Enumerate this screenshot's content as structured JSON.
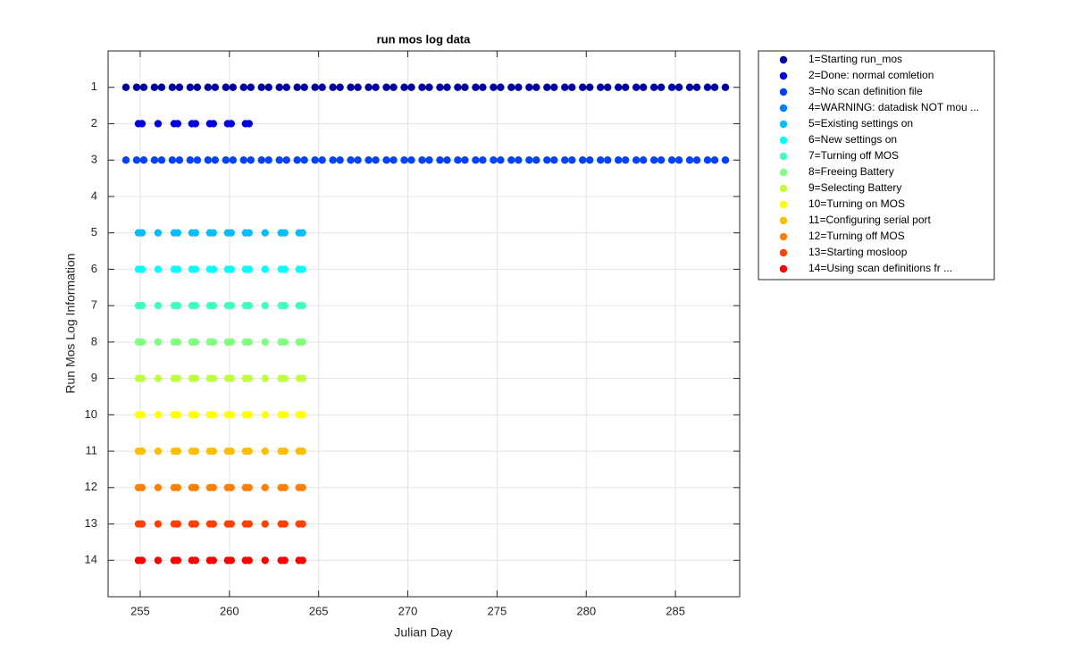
{
  "chart_data": {
    "type": "scatter",
    "title": "run mos log data",
    "xlabel": "Julian Day",
    "ylabel": "Run Mos Log Information",
    "xlim": [
      253.2,
      288.6
    ],
    "xticks": [
      255,
      260,
      265,
      270,
      275,
      280,
      285
    ],
    "ylim": [
      0,
      15
    ],
    "yticks": [
      1,
      2,
      3,
      4,
      5,
      6,
      7,
      8,
      9,
      10,
      11,
      12,
      13,
      14
    ],
    "ydir": "reverse",
    "grid": true,
    "legend": "outside-right",
    "series": [
      {
        "name": "1=Starting run_mos",
        "color": "#0000a0",
        "x": [
          254.2,
          254.8,
          255.2,
          255.8,
          256.2,
          256.8,
          257.2,
          257.8,
          258.2,
          258.8,
          259.2,
          259.8,
          260.2,
          260.8,
          261.2,
          261.8,
          262.2,
          262.8,
          263.2,
          263.8,
          264.2,
          264.8,
          265.2,
          265.8,
          266.2,
          266.8,
          267.2,
          267.8,
          268.2,
          268.8,
          269.2,
          269.8,
          270.2,
          270.8,
          271.2,
          271.8,
          272.2,
          272.8,
          273.2,
          273.8,
          274.2,
          274.8,
          275.2,
          275.8,
          276.2,
          276.8,
          277.2,
          277.8,
          278.2,
          278.8,
          279.2,
          279.8,
          280.2,
          280.8,
          281.2,
          281.8,
          282.2,
          282.8,
          283.2,
          283.8,
          284.2,
          284.8,
          285.2,
          285.8,
          286.2,
          286.8,
          287.2,
          287.8
        ],
        "values": [
          1,
          1,
          1,
          1,
          1,
          1,
          1,
          1,
          1,
          1,
          1,
          1,
          1,
          1,
          1,
          1,
          1,
          1,
          1,
          1,
          1,
          1,
          1,
          1,
          1,
          1,
          1,
          1,
          1,
          1,
          1,
          1,
          1,
          1,
          1,
          1,
          1,
          1,
          1,
          1,
          1,
          1,
          1,
          1,
          1,
          1,
          1,
          1,
          1,
          1,
          1,
          1,
          1,
          1,
          1,
          1,
          1,
          1,
          1,
          1,
          1,
          1,
          1,
          1,
          1,
          1,
          1,
          1
        ]
      },
      {
        "name": "2=Done: normal comletion",
        "color": "#0000e0",
        "x": [
          254.9,
          255.1,
          256,
          256.9,
          257.1,
          257.9,
          258.1,
          258.9,
          259.1,
          259.9,
          260.1,
          260.9,
          261.1
        ],
        "values": [
          2,
          2,
          2,
          2,
          2,
          2,
          2,
          2,
          2,
          2,
          2,
          2,
          2
        ]
      },
      {
        "name": "3=No scan definition file",
        "color": "#0040ff",
        "x": [
          254.2,
          254.8,
          255.2,
          255.8,
          256.2,
          256.8,
          257.2,
          257.8,
          258.2,
          258.8,
          259.2,
          259.8,
          260.2,
          260.8,
          261.2,
          261.8,
          262.2,
          262.8,
          263.2,
          263.8,
          264.2,
          264.8,
          265.2,
          265.8,
          266.2,
          266.8,
          267.2,
          267.8,
          268.2,
          268.8,
          269.2,
          269.8,
          270.2,
          270.8,
          271.2,
          271.8,
          272.2,
          272.8,
          273.2,
          273.8,
          274.2,
          274.8,
          275.2,
          275.8,
          276.2,
          276.8,
          277.2,
          277.8,
          278.2,
          278.8,
          279.2,
          279.8,
          280.2,
          280.8,
          281.2,
          281.8,
          282.2,
          282.8,
          283.2,
          283.8,
          284.2,
          284.8,
          285.2,
          285.8,
          286.2,
          286.8,
          287.2,
          287.8
        ],
        "values": [
          3,
          3,
          3,
          3,
          3,
          3,
          3,
          3,
          3,
          3,
          3,
          3,
          3,
          3,
          3,
          3,
          3,
          3,
          3,
          3,
          3,
          3,
          3,
          3,
          3,
          3,
          3,
          3,
          3,
          3,
          3,
          3,
          3,
          3,
          3,
          3,
          3,
          3,
          3,
          3,
          3,
          3,
          3,
          3,
          3,
          3,
          3,
          3,
          3,
          3,
          3,
          3,
          3,
          3,
          3,
          3,
          3,
          3,
          3,
          3,
          3,
          3,
          3,
          3,
          3,
          3,
          3,
          3
        ]
      },
      {
        "name": "4=WARNING: datadisk NOT mou ...",
        "color": "#0080ff",
        "x": [],
        "values": []
      },
      {
        "name": "5=Existing settings on",
        "color": "#00bfff",
        "x": [
          254.9,
          255.1,
          256,
          256.9,
          257.1,
          257.9,
          258.1,
          258.9,
          259.1,
          259.9,
          260.1,
          260.9,
          261.1,
          262,
          262.9,
          263.1,
          263.9,
          264.1
        ],
        "values": [
          5,
          5,
          5,
          5,
          5,
          5,
          5,
          5,
          5,
          5,
          5,
          5,
          5,
          5,
          5,
          5,
          5,
          5
        ]
      },
      {
        "name": "6=New settings on",
        "color": "#00ffff",
        "x": [
          254.9,
          255.1,
          256,
          256.9,
          257.1,
          257.9,
          258.1,
          258.9,
          259.1,
          259.9,
          260.1,
          260.9,
          261.1,
          262,
          262.9,
          263.1,
          263.9,
          264.1
        ],
        "values": [
          6,
          6,
          6,
          6,
          6,
          6,
          6,
          6,
          6,
          6,
          6,
          6,
          6,
          6,
          6,
          6,
          6,
          6
        ]
      },
      {
        "name": "7=Turning off MOS",
        "color": "#40ffbf",
        "x": [
          254.9,
          255.1,
          256,
          256.9,
          257.1,
          257.9,
          258.1,
          258.9,
          259.1,
          259.9,
          260.1,
          260.9,
          261.1,
          262,
          262.9,
          263.1,
          263.9,
          264.1
        ],
        "values": [
          7,
          7,
          7,
          7,
          7,
          7,
          7,
          7,
          7,
          7,
          7,
          7,
          7,
          7,
          7,
          7,
          7,
          7
        ]
      },
      {
        "name": "8=Freeing Battery",
        "color": "#80ff80",
        "x": [
          254.9,
          255.1,
          256,
          256.9,
          257.1,
          257.9,
          258.1,
          258.9,
          259.1,
          259.9,
          260.1,
          260.9,
          261.1,
          262,
          262.9,
          263.1,
          263.9,
          264.1
        ],
        "values": [
          8,
          8,
          8,
          8,
          8,
          8,
          8,
          8,
          8,
          8,
          8,
          8,
          8,
          8,
          8,
          8,
          8,
          8
        ]
      },
      {
        "name": "9=Selecting Battery",
        "color": "#bfff40",
        "x": [
          254.9,
          255.1,
          256,
          256.9,
          257.1,
          257.9,
          258.1,
          258.9,
          259.1,
          259.9,
          260.1,
          260.9,
          261.1,
          262,
          262.9,
          263.1,
          263.9,
          264.1
        ],
        "values": [
          9,
          9,
          9,
          9,
          9,
          9,
          9,
          9,
          9,
          9,
          9,
          9,
          9,
          9,
          9,
          9,
          9,
          9
        ]
      },
      {
        "name": "10=Turning on MOS",
        "color": "#ffff00",
        "x": [
          254.9,
          255.1,
          256,
          256.9,
          257.1,
          257.9,
          258.1,
          258.9,
          259.1,
          259.9,
          260.1,
          260.9,
          261.1,
          262,
          262.9,
          263.1,
          263.9,
          264.1
        ],
        "values": [
          10,
          10,
          10,
          10,
          10,
          10,
          10,
          10,
          10,
          10,
          10,
          10,
          10,
          10,
          10,
          10,
          10,
          10
        ]
      },
      {
        "name": "11=Configuring serial port",
        "color": "#ffbf00",
        "x": [
          254.9,
          255.1,
          256,
          256.9,
          257.1,
          257.9,
          258.1,
          258.9,
          259.1,
          259.9,
          260.1,
          260.9,
          261.1,
          262,
          262.9,
          263.1,
          263.9,
          264.1
        ],
        "values": [
          11,
          11,
          11,
          11,
          11,
          11,
          11,
          11,
          11,
          11,
          11,
          11,
          11,
          11,
          11,
          11,
          11,
          11
        ]
      },
      {
        "name": "12=Turning off MOS",
        "color": "#ff8000",
        "x": [
          254.9,
          255.1,
          256,
          256.9,
          257.1,
          257.9,
          258.1,
          258.9,
          259.1,
          259.9,
          260.1,
          260.9,
          261.1,
          262,
          262.9,
          263.1,
          263.9,
          264.1
        ],
        "values": [
          12,
          12,
          12,
          12,
          12,
          12,
          12,
          12,
          12,
          12,
          12,
          12,
          12,
          12,
          12,
          12,
          12,
          12
        ]
      },
      {
        "name": "13=Starting mosloop",
        "color": "#ff4000",
        "x": [
          254.9,
          255.1,
          256,
          256.9,
          257.1,
          257.9,
          258.1,
          258.9,
          259.1,
          259.9,
          260.1,
          260.9,
          261.1,
          262,
          262.9,
          263.1,
          263.9,
          264.1
        ],
        "values": [
          13,
          13,
          13,
          13,
          13,
          13,
          13,
          13,
          13,
          13,
          13,
          13,
          13,
          13,
          13,
          13,
          13,
          13
        ]
      },
      {
        "name": "14=Using scan definitions fr ...",
        "color": "#ff0000",
        "x": [
          254.9,
          255.1,
          256,
          256.9,
          257.1,
          257.9,
          258.1,
          258.9,
          259.1,
          259.9,
          260.1,
          260.9,
          261.1,
          262,
          262.9,
          263.1,
          263.9,
          264.1
        ],
        "values": [
          14,
          14,
          14,
          14,
          14,
          14,
          14,
          14,
          14,
          14,
          14,
          14,
          14,
          14,
          14,
          14,
          14,
          14
        ]
      }
    ]
  }
}
